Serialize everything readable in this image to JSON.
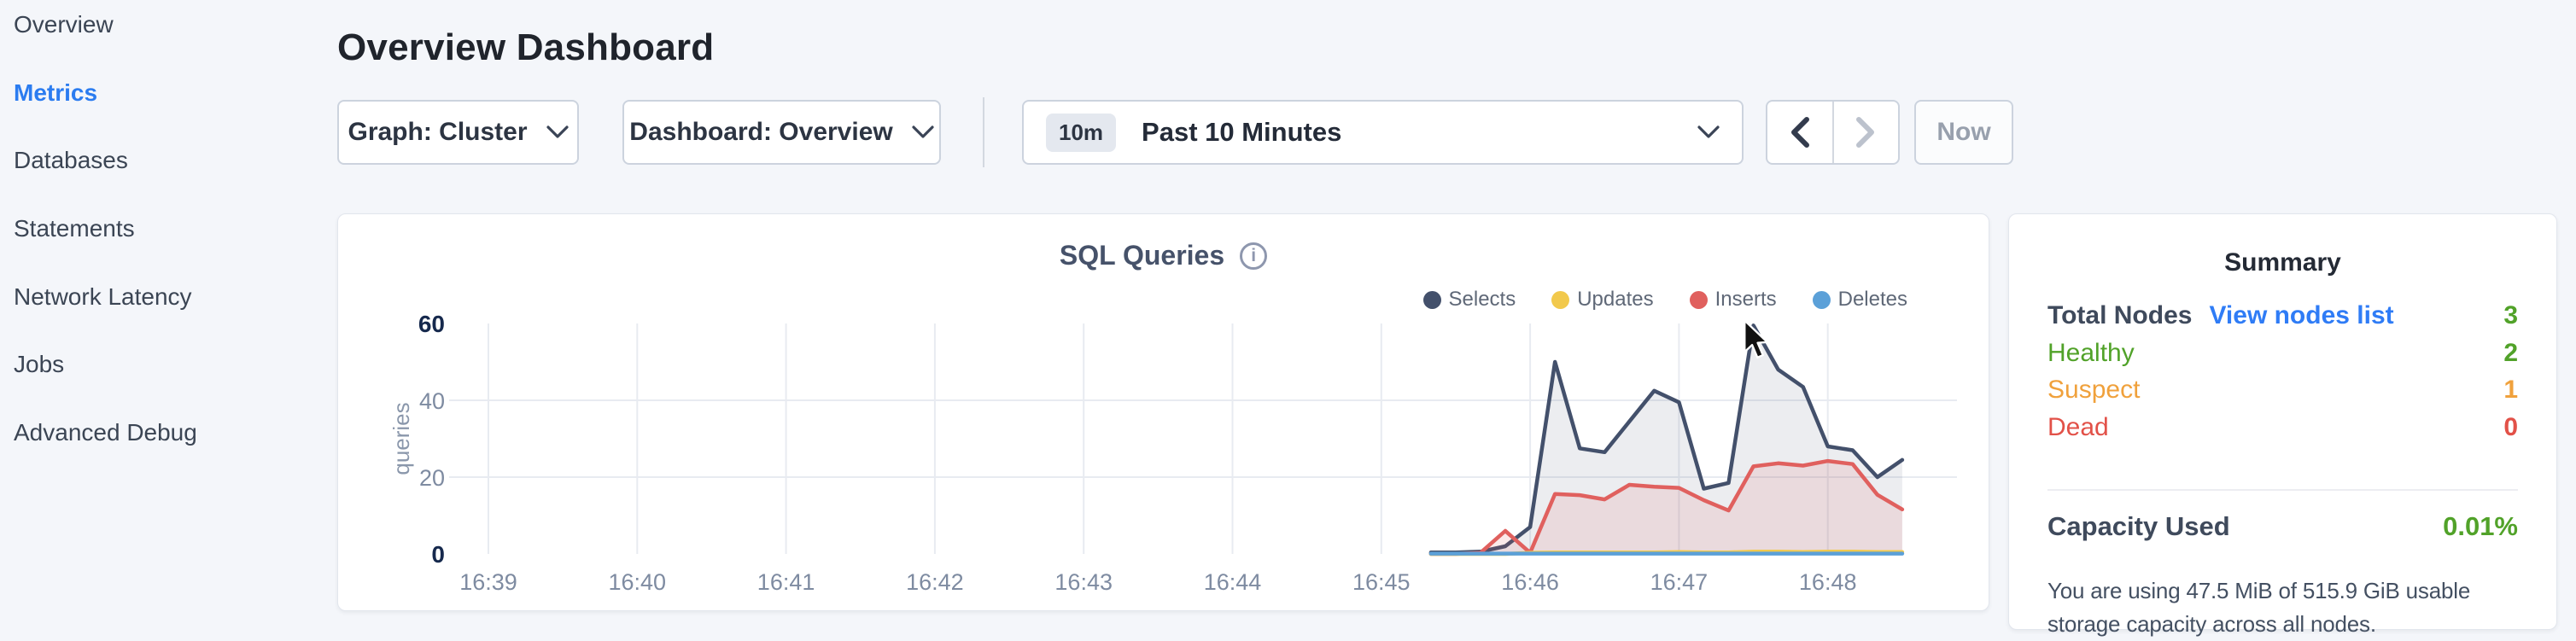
{
  "sidebar": {
    "items": [
      {
        "label": "Overview",
        "active": false
      },
      {
        "label": "Metrics",
        "active": true
      },
      {
        "label": "Databases",
        "active": false
      },
      {
        "label": "Statements",
        "active": false
      },
      {
        "label": "Network Latency",
        "active": false
      },
      {
        "label": "Jobs",
        "active": false
      },
      {
        "label": "Advanced Debug",
        "active": false
      }
    ]
  },
  "header": {
    "title": "Overview Dashboard"
  },
  "controls": {
    "graph_dropdown": {
      "label": "Graph: Cluster"
    },
    "dashboard_dropdown": {
      "label": "Dashboard: Overview"
    },
    "time_picker": {
      "badge": "10m",
      "label": "Past 10 Minutes"
    },
    "now_button": "Now"
  },
  "chart_card": {
    "title": "SQL Queries",
    "info_icon": "i"
  },
  "chart_data": {
    "type": "area",
    "title": "SQL Queries",
    "ylabel": "queries",
    "ylim": [
      0,
      60
    ],
    "yticks": [
      0,
      20,
      40,
      60
    ],
    "grid": true,
    "legend_position": "top-right",
    "x_minute_ticks": [
      "16:39",
      "16:40",
      "16:41",
      "16:42",
      "16:43",
      "16:44",
      "16:45",
      "16:46",
      "16:47",
      "16:48"
    ],
    "times": [
      "16:45:20",
      "16:45:30",
      "16:45:40",
      "16:45:50",
      "16:46:00",
      "16:46:10",
      "16:46:20",
      "16:46:30",
      "16:46:40",
      "16:46:50",
      "16:47:00",
      "16:47:10",
      "16:47:20",
      "16:47:30",
      "16:47:40",
      "16:47:50",
      "16:48:00",
      "16:48:10",
      "16:48:20",
      "16:48:30"
    ],
    "series": [
      {
        "name": "Selects",
        "color": "#43506b",
        "fill": "rgba(67,80,107,0.10)",
        "values": [
          0.4,
          0.4,
          0.6,
          2,
          7,
          50,
          27.5,
          26.5,
          34.5,
          42.5,
          39.5,
          17,
          18.5,
          59.5,
          48,
          43.5,
          28,
          27,
          20,
          24.5
        ]
      },
      {
        "name": "Updates",
        "color": "#f2c94c",
        "fill": "none",
        "values": [
          0,
          0,
          0,
          0,
          0.3,
          0.4,
          0.4,
          0.4,
          0.4,
          0.4,
          0.5,
          0.4,
          0.4,
          0.6,
          0.6,
          0.5,
          0.6,
          0.6,
          0.5,
          0.5
        ]
      },
      {
        "name": "Inserts",
        "color": "#e0605e",
        "fill": "rgba(224,92,90,0.13)",
        "values": [
          0,
          0,
          0.3,
          6,
          0.3,
          15.6,
          15.3,
          14.2,
          18,
          17.5,
          17.2,
          14,
          11.3,
          22.8,
          23.6,
          23,
          24.2,
          23.4,
          15.4,
          11.6
        ]
      },
      {
        "name": "Deletes",
        "color": "#5ba0d8",
        "fill": "none",
        "values": [
          0.1,
          0.1,
          0.1,
          0.1,
          0.1,
          0.1,
          0.1,
          0.1,
          0.1,
          0.1,
          0.1,
          0.1,
          0.1,
          0.1,
          0.1,
          0.1,
          0.1,
          0.1,
          0.1,
          0.1
        ]
      }
    ]
  },
  "summary": {
    "title": "Summary",
    "rows": [
      {
        "label": "Total Nodes",
        "link": "View nodes list",
        "value": "3",
        "color": "green",
        "bold": true
      },
      {
        "label": "Healthy",
        "value": "2",
        "color": "green",
        "bold": false
      },
      {
        "label": "Suspect",
        "value": "1",
        "color": "orange",
        "bold": false
      },
      {
        "label": "Dead",
        "value": "0",
        "color": "red",
        "bold": false
      }
    ],
    "capacity": {
      "label": "Capacity Used",
      "value": "0.01%",
      "description": "You are using 47.5 MiB of 515.9 GiB usable storage capacity across all nodes."
    }
  },
  "colors": {
    "accent_blue": "#2b7cf0",
    "link_blue": "#2f7cf6",
    "healthy_green": "#51a229",
    "suspect_orange": "#f0a13c",
    "dead_red": "#e25148",
    "selects_navy": "#43506b",
    "updates_yellow": "#f2c94c",
    "inserts_red": "#e0605e",
    "deletes_blue": "#5ba0d8",
    "page_background": "#f4f6fa"
  }
}
